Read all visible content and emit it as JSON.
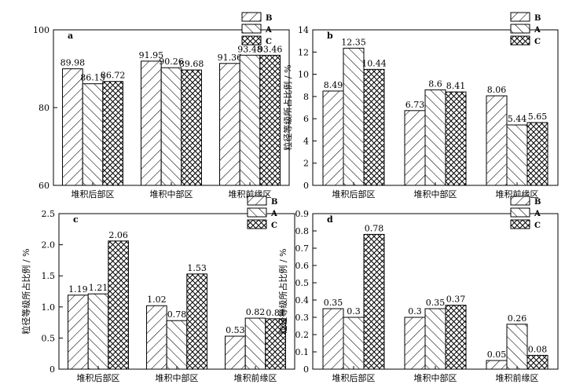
{
  "figure": {
    "categories": [
      "堆积后部区",
      "堆积中部区",
      "堆积前缘区"
    ],
    "legend": [
      "B",
      "A",
      "C"
    ],
    "ylabel": "粒径等级所占比例 / %"
  },
  "chart_data": [
    {
      "type": "bar",
      "panel": "a",
      "categories": [
        "堆积后部区",
        "堆积中部区",
        "堆积前缘区"
      ],
      "series": [
        {
          "name": "B",
          "values": [
            89.98,
            91.95,
            91.36
          ]
        },
        {
          "name": "A",
          "values": [
            86.13,
            90.26,
            93.48
          ]
        },
        {
          "name": "C",
          "values": [
            86.72,
            89.68,
            93.46
          ]
        }
      ],
      "value_labels": [
        [
          "89.98",
          "86.13",
          "86.72"
        ],
        [
          "91.95",
          "90.26",
          "89.68"
        ],
        [
          "91.36",
          "93.48",
          "93.46"
        ]
      ],
      "ylabel": "",
      "ylim": [
        60,
        100
      ],
      "yticks": [
        60,
        80,
        100
      ],
      "ytick_labels": [
        "60",
        "80",
        "100"
      ],
      "legend_position": "top-right",
      "grid": false
    },
    {
      "type": "bar",
      "panel": "b",
      "categories": [
        "堆积后部区",
        "堆积中部区",
        "堆积前缘区"
      ],
      "series": [
        {
          "name": "B",
          "values": [
            8.49,
            6.73,
            8.06
          ]
        },
        {
          "name": "A",
          "values": [
            12.35,
            8.6,
            5.44
          ]
        },
        {
          "name": "C",
          "values": [
            10.44,
            8.41,
            5.65
          ]
        }
      ],
      "value_labels": [
        [
          "8.49",
          "12.35",
          "10.44"
        ],
        [
          "6.73",
          "8.6",
          "8.41"
        ],
        [
          "8.06",
          "5.44",
          "5.65"
        ]
      ],
      "ylabel": "粒径等级所占比例 / %",
      "ylim": [
        0,
        14
      ],
      "yticks": [
        0,
        2,
        4,
        6,
        8,
        10,
        12,
        14
      ],
      "ytick_labels": [
        "0",
        "2",
        "4",
        "6",
        "8",
        "10",
        "12",
        "14"
      ],
      "legend_position": "top-right",
      "grid": false
    },
    {
      "type": "bar",
      "panel": "c",
      "categories": [
        "堆积后部区",
        "堆积中部区",
        "堆积前缘区"
      ],
      "series": [
        {
          "name": "B",
          "values": [
            1.19,
            1.02,
            0.53
          ]
        },
        {
          "name": "A",
          "values": [
            1.21,
            0.78,
            0.82
          ]
        },
        {
          "name": "C",
          "values": [
            2.06,
            1.53,
            0.81
          ]
        }
      ],
      "value_labels": [
        [
          "1.19",
          "1.21",
          "2.06"
        ],
        [
          "1.02",
          "0.78",
          "1.53"
        ],
        [
          "0.53",
          "0.82",
          "0.81"
        ]
      ],
      "ylabel": "粒径等级所占比例 / %",
      "ylim": [
        0,
        2.5
      ],
      "yticks": [
        0,
        0.5,
        1.0,
        1.5,
        2.0,
        2.5
      ],
      "ytick_labels": [
        "0",
        "0.5",
        "1.0",
        "1.5",
        "2.0",
        "2.5"
      ],
      "legend_position": "top-right",
      "grid": false
    },
    {
      "type": "bar",
      "panel": "d",
      "categories": [
        "堆积后部区",
        "堆积中部区",
        "堆积前缘区"
      ],
      "series": [
        {
          "name": "B",
          "values": [
            0.35,
            0.3,
            0.05
          ]
        },
        {
          "name": "A",
          "values": [
            0.3,
            0.35,
            0.26
          ]
        },
        {
          "name": "C",
          "values": [
            0.78,
            0.37,
            0.08
          ]
        }
      ],
      "value_labels": [
        [
          "0.35",
          "0.3",
          "0.78"
        ],
        [
          "0.3",
          "0.35",
          "0.37"
        ],
        [
          "0.05",
          "0.26",
          "0.08"
        ]
      ],
      "ylabel": "粒径等级所占比例 / %",
      "ylim": [
        0,
        0.9
      ],
      "yticks": [
        0,
        0.1,
        0.2,
        0.3,
        0.4,
        0.5,
        0.6,
        0.7,
        0.8,
        0.9
      ],
      "ytick_labels": [
        "0",
        "0.1",
        "0.2",
        "0.3",
        "0.4",
        "0.5",
        "0.6",
        "0.7",
        "0.8",
        "0.9"
      ],
      "legend_position": "top-right",
      "grid": false
    }
  ]
}
